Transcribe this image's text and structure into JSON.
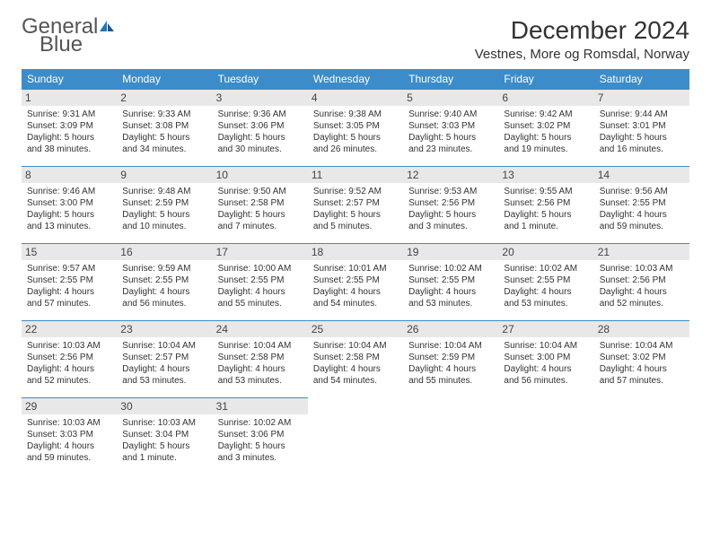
{
  "logo": {
    "word1": "General",
    "word2": "Blue"
  },
  "title": "December 2024",
  "location": "Vestnes, More og Romsdal, Norway",
  "colors": {
    "header_bg": "#3c8cc9",
    "header_text": "#ffffff",
    "day_border": "#3c8cc9",
    "daynum_bg": "#e8e8e8",
    "text": "#333333",
    "logo_gray": "#555555",
    "logo_blue": "#2176b8"
  },
  "weekdays": [
    "Sunday",
    "Monday",
    "Tuesday",
    "Wednesday",
    "Thursday",
    "Friday",
    "Saturday"
  ],
  "days": [
    {
      "n": "1",
      "sunrise": "Sunrise: 9:31 AM",
      "sunset": "Sunset: 3:09 PM",
      "daylight": "Daylight: 5 hours and 38 minutes."
    },
    {
      "n": "2",
      "sunrise": "Sunrise: 9:33 AM",
      "sunset": "Sunset: 3:08 PM",
      "daylight": "Daylight: 5 hours and 34 minutes."
    },
    {
      "n": "3",
      "sunrise": "Sunrise: 9:36 AM",
      "sunset": "Sunset: 3:06 PM",
      "daylight": "Daylight: 5 hours and 30 minutes."
    },
    {
      "n": "4",
      "sunrise": "Sunrise: 9:38 AM",
      "sunset": "Sunset: 3:05 PM",
      "daylight": "Daylight: 5 hours and 26 minutes."
    },
    {
      "n": "5",
      "sunrise": "Sunrise: 9:40 AM",
      "sunset": "Sunset: 3:03 PM",
      "daylight": "Daylight: 5 hours and 23 minutes."
    },
    {
      "n": "6",
      "sunrise": "Sunrise: 9:42 AM",
      "sunset": "Sunset: 3:02 PM",
      "daylight": "Daylight: 5 hours and 19 minutes."
    },
    {
      "n": "7",
      "sunrise": "Sunrise: 9:44 AM",
      "sunset": "Sunset: 3:01 PM",
      "daylight": "Daylight: 5 hours and 16 minutes."
    },
    {
      "n": "8",
      "sunrise": "Sunrise: 9:46 AM",
      "sunset": "Sunset: 3:00 PM",
      "daylight": "Daylight: 5 hours and 13 minutes."
    },
    {
      "n": "9",
      "sunrise": "Sunrise: 9:48 AM",
      "sunset": "Sunset: 2:59 PM",
      "daylight": "Daylight: 5 hours and 10 minutes."
    },
    {
      "n": "10",
      "sunrise": "Sunrise: 9:50 AM",
      "sunset": "Sunset: 2:58 PM",
      "daylight": "Daylight: 5 hours and 7 minutes."
    },
    {
      "n": "11",
      "sunrise": "Sunrise: 9:52 AM",
      "sunset": "Sunset: 2:57 PM",
      "daylight": "Daylight: 5 hours and 5 minutes."
    },
    {
      "n": "12",
      "sunrise": "Sunrise: 9:53 AM",
      "sunset": "Sunset: 2:56 PM",
      "daylight": "Daylight: 5 hours and 3 minutes."
    },
    {
      "n": "13",
      "sunrise": "Sunrise: 9:55 AM",
      "sunset": "Sunset: 2:56 PM",
      "daylight": "Daylight: 5 hours and 1 minute."
    },
    {
      "n": "14",
      "sunrise": "Sunrise: 9:56 AM",
      "sunset": "Sunset: 2:55 PM",
      "daylight": "Daylight: 4 hours and 59 minutes."
    },
    {
      "n": "15",
      "sunrise": "Sunrise: 9:57 AM",
      "sunset": "Sunset: 2:55 PM",
      "daylight": "Daylight: 4 hours and 57 minutes."
    },
    {
      "n": "16",
      "sunrise": "Sunrise: 9:59 AM",
      "sunset": "Sunset: 2:55 PM",
      "daylight": "Daylight: 4 hours and 56 minutes."
    },
    {
      "n": "17",
      "sunrise": "Sunrise: 10:00 AM",
      "sunset": "Sunset: 2:55 PM",
      "daylight": "Daylight: 4 hours and 55 minutes."
    },
    {
      "n": "18",
      "sunrise": "Sunrise: 10:01 AM",
      "sunset": "Sunset: 2:55 PM",
      "daylight": "Daylight: 4 hours and 54 minutes."
    },
    {
      "n": "19",
      "sunrise": "Sunrise: 10:02 AM",
      "sunset": "Sunset: 2:55 PM",
      "daylight": "Daylight: 4 hours and 53 minutes."
    },
    {
      "n": "20",
      "sunrise": "Sunrise: 10:02 AM",
      "sunset": "Sunset: 2:55 PM",
      "daylight": "Daylight: 4 hours and 53 minutes."
    },
    {
      "n": "21",
      "sunrise": "Sunrise: 10:03 AM",
      "sunset": "Sunset: 2:56 PM",
      "daylight": "Daylight: 4 hours and 52 minutes."
    },
    {
      "n": "22",
      "sunrise": "Sunrise: 10:03 AM",
      "sunset": "Sunset: 2:56 PM",
      "daylight": "Daylight: 4 hours and 52 minutes."
    },
    {
      "n": "23",
      "sunrise": "Sunrise: 10:04 AM",
      "sunset": "Sunset: 2:57 PM",
      "daylight": "Daylight: 4 hours and 53 minutes."
    },
    {
      "n": "24",
      "sunrise": "Sunrise: 10:04 AM",
      "sunset": "Sunset: 2:58 PM",
      "daylight": "Daylight: 4 hours and 53 minutes."
    },
    {
      "n": "25",
      "sunrise": "Sunrise: 10:04 AM",
      "sunset": "Sunset: 2:58 PM",
      "daylight": "Daylight: 4 hours and 54 minutes."
    },
    {
      "n": "26",
      "sunrise": "Sunrise: 10:04 AM",
      "sunset": "Sunset: 2:59 PM",
      "daylight": "Daylight: 4 hours and 55 minutes."
    },
    {
      "n": "27",
      "sunrise": "Sunrise: 10:04 AM",
      "sunset": "Sunset: 3:00 PM",
      "daylight": "Daylight: 4 hours and 56 minutes."
    },
    {
      "n": "28",
      "sunrise": "Sunrise: 10:04 AM",
      "sunset": "Sunset: 3:02 PM",
      "daylight": "Daylight: 4 hours and 57 minutes."
    },
    {
      "n": "29",
      "sunrise": "Sunrise: 10:03 AM",
      "sunset": "Sunset: 3:03 PM",
      "daylight": "Daylight: 4 hours and 59 minutes."
    },
    {
      "n": "30",
      "sunrise": "Sunrise: 10:03 AM",
      "sunset": "Sunset: 3:04 PM",
      "daylight": "Daylight: 5 hours and 1 minute."
    },
    {
      "n": "31",
      "sunrise": "Sunrise: 10:02 AM",
      "sunset": "Sunset: 3:06 PM",
      "daylight": "Daylight: 5 hours and 3 minutes."
    }
  ]
}
